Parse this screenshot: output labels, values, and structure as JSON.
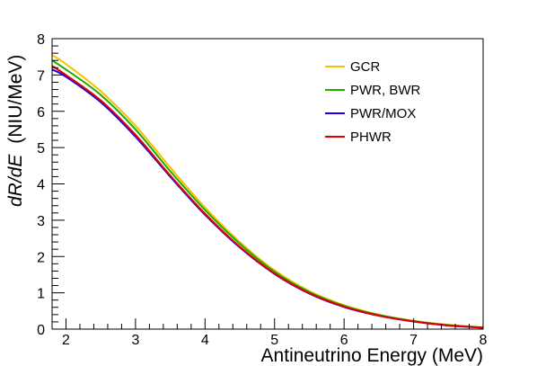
{
  "chart_data": {
    "type": "line",
    "title": "",
    "xlabel": "Antineutrino Energy (MeV)",
    "ylabel": {
      "italic_part": "dR/dE",
      "unit_part": "(NIU/MeV)"
    },
    "xlim": [
      1.8,
      8
    ],
    "ylim": [
      0,
      8
    ],
    "xticks": [
      2,
      3,
      4,
      5,
      6,
      7,
      8
    ],
    "yticks": [
      0,
      1,
      2,
      3,
      4,
      5,
      6,
      7,
      8
    ],
    "grid": false,
    "legend_placement": "top-right",
    "x": [
      1.8,
      2.0,
      2.5,
      3.0,
      3.5,
      4.0,
      4.5,
      5.0,
      5.5,
      6.0,
      6.5,
      7.0,
      7.5,
      8.0
    ],
    "series": [
      {
        "name": "GCR",
        "color": "#f2c200",
        "values": [
          7.55,
          7.3,
          6.55,
          5.6,
          4.45,
          3.35,
          2.4,
          1.62,
          1.05,
          0.66,
          0.4,
          0.23,
          0.12,
          0.05
        ]
      },
      {
        "name": "PWR, BWR",
        "color": "#22aa00",
        "values": [
          7.4,
          7.15,
          6.45,
          5.5,
          4.35,
          3.28,
          2.35,
          1.58,
          1.02,
          0.64,
          0.39,
          0.22,
          0.11,
          0.04
        ]
      },
      {
        "name": "PWR/MOX",
        "color": "#1a00e6",
        "values": [
          7.15,
          6.95,
          6.25,
          5.3,
          4.2,
          3.15,
          2.25,
          1.52,
          0.98,
          0.61,
          0.37,
          0.21,
          0.1,
          0.04
        ]
      },
      {
        "name": "PHWR",
        "color": "#e00000",
        "values": [
          7.25,
          7.0,
          6.3,
          5.35,
          4.23,
          3.18,
          2.27,
          1.53,
          0.99,
          0.62,
          0.37,
          0.21,
          0.1,
          0.04
        ]
      }
    ]
  }
}
